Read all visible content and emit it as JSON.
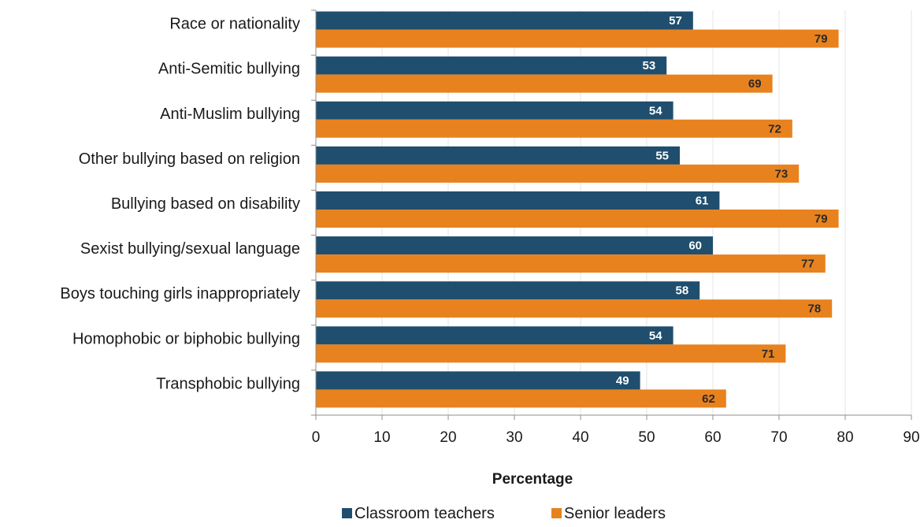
{
  "chart_data": {
    "type": "bar",
    "orientation": "horizontal",
    "categories": [
      "Race or nationality",
      "Anti-Semitic bullying",
      "Anti-Muslim bullying",
      "Other bullying based on religion",
      "Bullying based on disability",
      "Sexist bullying/sexual language",
      "Boys touching girls inappropriately",
      "Homophobic or biphobic bullying",
      "Transphobic bullying"
    ],
    "series": [
      {
        "name": "Classroom teachers",
        "color": "#1f4e6e",
        "values": [
          57,
          53,
          54,
          55,
          61,
          60,
          58,
          54,
          49
        ]
      },
      {
        "name": "Senior leaders",
        "color": "#e8821e",
        "values": [
          79,
          69,
          72,
          73,
          79,
          77,
          78,
          71,
          62
        ]
      }
    ],
    "xlabel": "Percentage",
    "ylabel": "",
    "xlim": [
      0,
      90
    ],
    "ticks": [
      0,
      10,
      20,
      30,
      40,
      50,
      60,
      70,
      80,
      90
    ],
    "grid": true,
    "data_labels": true,
    "legend_position": "bottom"
  }
}
